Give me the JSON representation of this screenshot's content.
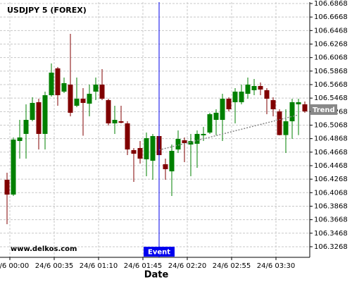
{
  "chart_data": {
    "type": "candlestick",
    "title": "USDJPY 5 (FOREX)",
    "watermark": "www.delkos.com",
    "x_label": "Date",
    "categories": [
      "24/6 00:00",
      null,
      null,
      null,
      null,
      null,
      null,
      "24/6 00:35",
      null,
      null,
      null,
      null,
      null,
      null,
      "24/6 01:10",
      null,
      null,
      null,
      null,
      null,
      null,
      "24/6 01:45",
      null,
      null,
      null,
      null,
      null,
      null,
      "24/6 02:20",
      null,
      null,
      null,
      null,
      null,
      null,
      "24/6 02:55",
      null,
      null,
      null,
      null,
      null,
      null,
      "24/6 03:30",
      null,
      null,
      null,
      null,
      null
    ],
    "open": [
      106.4259,
      106.404,
      106.4833,
      106.4938,
      106.5146,
      106.5407,
      106.4938,
      106.5511,
      106.5908,
      106.5564,
      106.5668,
      106.5355,
      106.5459,
      106.5386,
      106.5564,
      106.5668,
      106.5438,
      106.5094,
      106.5125,
      106.5094,
      106.4698,
      106.4729,
      106.4562,
      106.4541,
      106.4906,
      106.4489,
      106.4384,
      106.4708,
      106.4844,
      106.4781,
      106.4792,
      106.4917,
      106.4958,
      106.5146,
      106.5146,
      106.5459,
      106.5407,
      106.5407,
      106.5532,
      106.5585,
      106.5647,
      106.5585,
      106.5438,
      106.5271,
      106.4921,
      106.5125,
      106.5376,
      106.5376
    ],
    "high": [
      106.4364,
      106.4885,
      106.5146,
      106.5376,
      106.548,
      106.5459,
      106.5564,
      106.5981,
      106.5929,
      106.5772,
      106.6419,
      106.5772,
      106.5616,
      106.5668,
      106.5772,
      106.5898,
      106.5459,
      106.5355,
      106.5355,
      106.5125,
      106.4729,
      106.4833,
      106.4958,
      106.4938,
      106.4917,
      106.4572,
      106.4781,
      106.499,
      106.4885,
      106.4938,
      106.499,
      106.5042,
      106.5251,
      106.5303,
      106.5532,
      106.548,
      106.5616,
      106.5668,
      106.5772,
      106.5751,
      106.5699,
      106.5616,
      106.548,
      106.5303,
      106.5303,
      106.5459,
      106.5459,
      106.5418
    ],
    "low": [
      106.3602,
      106.4019,
      106.4572,
      106.4572,
      106.5125,
      106.4708,
      106.4708,
      106.5491,
      106.5355,
      106.5543,
      106.5198,
      106.5334,
      106.4911,
      106.5198,
      106.5438,
      106.5438,
      106.5063,
      106.4938,
      106.5094,
      106.4624,
      106.4228,
      106.4499,
      106.4311,
      106.4259,
      106.4499,
      106.4259,
      106.4019,
      106.4656,
      106.452,
      106.4311,
      106.4437,
      106.4833,
      106.4938,
      106.4921,
      106.4833,
      106.5271,
      106.5094,
      106.5376,
      106.5459,
      106.5511,
      106.5511,
      106.523,
      106.5198,
      106.4917,
      106.4656,
      106.4864,
      106.4921,
      106.5251
    ],
    "close": [
      106.404,
      106.4854,
      106.4885,
      106.5146,
      106.5397,
      106.4938,
      106.5511,
      106.5845,
      106.5511,
      106.5689,
      106.5251,
      106.5459,
      106.5397,
      106.5532,
      106.5668,
      106.5459,
      106.5094,
      106.5146,
      106.5104,
      106.4708,
      106.4645,
      106.4572,
      106.4875,
      106.4906,
      106.4624,
      106.4416,
      106.4687,
      106.4864,
      106.4802,
      106.4833,
      106.4938,
      106.4938,
      106.523,
      106.5251,
      106.5459,
      106.5303,
      106.5564,
      106.5564,
      106.5668,
      106.5647,
      106.5595,
      106.5459,
      106.5303,
      106.4921,
      106.5125,
      106.5407,
      106.5407,
      106.5271
    ],
    "up_color": "#008000",
    "down_color": "#800000",
    "trend": {
      "name": "Trend",
      "color": "#888888",
      "values": [
        null,
        null,
        null,
        null,
        null,
        null,
        null,
        null,
        null,
        null,
        null,
        null,
        null,
        null,
        null,
        null,
        null,
        null,
        null,
        null,
        null,
        null,
        null,
        null,
        106.47,
        106.4724,
        106.4747,
        106.4771,
        106.4795,
        106.4818,
        106.4842,
        106.4865,
        106.4889,
        106.4913,
        106.4936,
        106.496,
        106.4984,
        106.5007,
        106.5031,
        106.5055,
        106.5078,
        106.5102,
        106.5125,
        106.5149,
        106.5173,
        106.5196,
        106.522,
        null
      ]
    },
    "event": {
      "label": "Event",
      "category": 24,
      "color": "#0000ee"
    },
    "ylim": [
      106.3111,
      106.6889
    ],
    "yticks": [
      106.3268,
      106.3468,
      106.3668,
      106.3868,
      106.4068,
      106.4268,
      106.4468,
      106.4668,
      106.4868,
      106.5068,
      106.5268,
      106.5468,
      106.5668,
      106.5868,
      106.6068,
      106.6268,
      106.6468,
      106.6668,
      106.6868
    ],
    "grid": true
  }
}
